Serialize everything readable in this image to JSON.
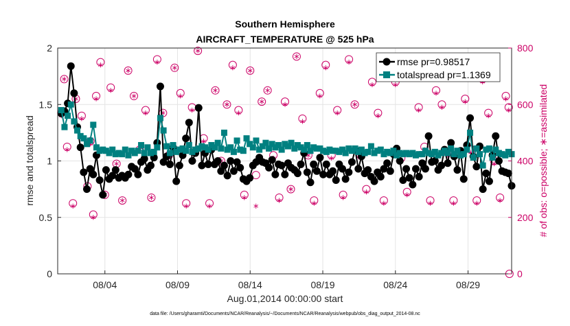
{
  "title": "Southern Hemisphere",
  "subtitle": "AIRCRAFT_TEMPERATURE @ 525 hPa",
  "xlabel": "Aug.01,2014 00:00:00 start",
  "ylabel_left": "rmse and totalspread",
  "ylabel_right": "# of obs: o=possible; ∗=assimilated",
  "footer": "data file: /Users/gharamti/Documents/NCAR/Reanalysis/~/Documents/NCAR/Reanalysis/webpub/obs_diag_output_2014-08.nc",
  "colors": {
    "rmse": "#000000",
    "spread": "#008080",
    "obs": "#cc0066",
    "grid": "#e4e4e4"
  },
  "chart_data": {
    "type": "line",
    "x_start_day": 1,
    "x_end_day": 32,
    "xlim": [
      0.75,
      32.0
    ],
    "xticks": [
      4,
      9,
      14,
      19,
      24,
      29
    ],
    "xtick_labels": [
      "08/04",
      "08/09",
      "08/14",
      "08/19",
      "08/24",
      "08/29"
    ],
    "ylim_left": [
      0,
      2
    ],
    "yticks_left": [
      0,
      0.5,
      1,
      1.5,
      2
    ],
    "ytick_labels_left": [
      "0",
      "0.5",
      "1",
      "1.5",
      "2"
    ],
    "ylim_right": [
      0,
      800
    ],
    "yticks_right": [
      0,
      200,
      400,
      600,
      800
    ],
    "ytick_labels_right": [
      "0",
      "200",
      "400",
      "600",
      "800"
    ],
    "grid": true,
    "legend_position": "top-right",
    "series": [
      {
        "name": "rmse pr=0.98517",
        "axis": "left",
        "marker": "circle",
        "values": [
          1.42,
          1.44,
          1.51,
          1.84,
          1.6,
          1.3,
          1.12,
          0.9,
          0.75,
          0.93,
          0.88,
          1.05,
          0.83,
          0.7,
          0.92,
          0.84,
          0.87,
          0.92,
          0.85,
          0.87,
          0.85,
          0.88,
          0.95,
          0.93,
          0.88,
          0.99,
          1.02,
          0.92,
          0.96,
          1.03,
          1.16,
          1.66,
          0.99,
          1.04,
          0.97,
          1.12,
          0.82,
          0.96,
          1.05,
          1.2,
          1.34,
          1.0,
          1.07,
          1.47,
          0.96,
          1.07,
          0.97,
          1.1,
          0.97,
          1.0,
          0.91,
          0.96,
          0.87,
          1.0,
          0.91,
          0.99,
          0.94,
          0.84,
          0.82,
          0.85,
          0.96,
          0.99,
          1.03,
          0.99,
          0.98,
          0.94,
          1.01,
          0.88,
          0.97,
          0.96,
          0.88,
          0.98,
          0.94,
          0.92,
          0.89,
          0.97,
          1.07,
          0.9,
          0.81,
          0.97,
          0.91,
          1.03,
          0.88,
          0.97,
          0.88,
          0.91,
          0.83,
          0.97,
          0.93,
          0.84,
          0.9,
          0.99,
          1.1,
          0.93,
          1.04,
          0.89,
          0.92,
          0.86,
          0.82,
          0.9,
          0.86,
          0.93,
          0.98,
          0.91,
          1.06,
          1.11,
          1.0,
          0.83,
          0.93,
          0.85,
          0.79,
          0.93,
          0.86,
          0.98,
          0.93,
          1.22,
          0.99,
          1.0,
          0.92,
          0.96,
          1.1,
          0.98,
          1.16,
          1.04,
          0.92,
          1.09,
          0.84,
          1.14,
          1.38,
          1.04,
          0.95,
          1.13,
          0.75,
          0.89,
          0.82,
          1.05,
          1.22,
          1.0,
          0.91,
          0.9,
          0.89,
          0.78
        ]
      },
      {
        "name": "totalspread pr=1.1369",
        "axis": "left",
        "marker": "square",
        "values": [
          1.45,
          1.3,
          1.4,
          1.5,
          1.35,
          1.27,
          1.22,
          1.2,
          1.15,
          1.18,
          1.32,
          1.12,
          1.09,
          1.1,
          1.09,
          1.07,
          1.1,
          1.06,
          1.07,
          1.06,
          1.1,
          1.05,
          1.09,
          1.07,
          1.09,
          1.14,
          1.07,
          1.12,
          1.07,
          1.08,
          1.12,
          1.38,
          1.27,
          1.13,
          1.07,
          1.14,
          1.08,
          1.1,
          1.11,
          1.09,
          1.14,
          1.08,
          1.1,
          1.11,
          1.13,
          1.12,
          1.1,
          1.14,
          1.12,
          1.16,
          1.11,
          1.25,
          1.1,
          1.12,
          1.08,
          1.18,
          1.1,
          1.09,
          1.2,
          1.15,
          1.12,
          1.18,
          1.1,
          1.13,
          1.16,
          1.11,
          1.15,
          1.12,
          1.14,
          1.1,
          1.15,
          1.13,
          1.16,
          1.11,
          1.14,
          1.12,
          1.1,
          1.14,
          1.09,
          1.12,
          1.11,
          1.11,
          1.09,
          1.08,
          1.1,
          1.09,
          1.09,
          1.08,
          1.1,
          1.07,
          1.11,
          1.09,
          1.11,
          1.08,
          1.1,
          1.07,
          1.08,
          1.13,
          1.07,
          1.09,
          1.1,
          1.06,
          1.08,
          1.07,
          1.09,
          1.05,
          1.07,
          1.06,
          1.07,
          1.06,
          1.07,
          1.05,
          1.06,
          1.06,
          1.09,
          1.07,
          1.06,
          1.08,
          1.05,
          1.07,
          1.09,
          1.07,
          1.11,
          1.06,
          1.09,
          1.05,
          1.06,
          1.1,
          1.25,
          1.03,
          1.11,
          1.06,
          0.96,
          1.1,
          1.11,
          1.03,
          1.1,
          1.07,
          1.06,
          1.05,
          1.08,
          1.06
        ]
      }
    ],
    "obs_possible": {
      "name": "possible",
      "axis": "right",
      "marker": "circle",
      "x": [
        1.0,
        1.2,
        1.4,
        1.8,
        2.0,
        2.4,
        2.8,
        3.0,
        3.2,
        3.4,
        3.7,
        4.0,
        4.4,
        4.8,
        5.2,
        5.6,
        6.0,
        6.4,
        6.8,
        7.2,
        7.6,
        8.0,
        8.4,
        8.8,
        9.2,
        9.6,
        10.0,
        10.4,
        10.8,
        11.2,
        11.6,
        12.0,
        12.4,
        12.8,
        13.2,
        13.6,
        14.0,
        14.4,
        14.8,
        15.2,
        15.6,
        16.0,
        16.4,
        16.8,
        17.2,
        17.6,
        18.0,
        18.4,
        18.8,
        19.2,
        19.6,
        20.0,
        20.4,
        20.8,
        21.2,
        21.6,
        22.0,
        22.4,
        22.8,
        23.2,
        23.6,
        24.0,
        24.4,
        24.8,
        25.2,
        25.6,
        26.0,
        26.4,
        26.8,
        27.2,
        27.6,
        28.0,
        28.4,
        28.8,
        29.2,
        29.6,
        30.0,
        30.4,
        30.8,
        31.2,
        31.6,
        31.8
      ],
      "values": [
        570,
        690,
        450,
        250,
        620,
        560,
        310,
        470,
        210,
        630,
        750,
        280,
        660,
        390,
        260,
        720,
        630,
        440,
        580,
        270,
        760,
        570,
        420,
        730,
        640,
        250,
        590,
        790,
        480,
        250,
        650,
        400,
        600,
        740,
        580,
        280,
        720,
        350,
        610,
        650,
        420,
        270,
        610,
        300,
        770,
        550,
        420,
        260,
        640,
        740,
        420,
        580,
        280,
        760,
        600,
        420,
        300,
        680,
        570,
        260,
        750,
        680,
        410,
        290,
        730,
        590,
        450,
        260,
        650,
        600,
        430,
        260,
        760,
        620,
        440,
        260,
        690,
        570,
        400,
        270,
        630,
        590
      ],
      "assimilated": [
        560,
        690,
        440,
        240,
        620,
        550,
        300,
        460,
        200,
        620,
        740,
        280,
        650,
        390,
        260,
        720,
        630,
        440,
        570,
        270,
        750,
        570,
        420,
        730,
        630,
        240,
        580,
        790,
        470,
        240,
        650,
        400,
        600,
        730,
        570,
        270,
        720,
        240,
        610,
        650,
        410,
        260,
        600,
        300,
        770,
        540,
        420,
        250,
        630,
        730,
        410,
        570,
        270,
        750,
        600,
        410,
        290,
        670,
        560,
        250,
        740,
        670,
        400,
        280,
        720,
        580,
        440,
        250,
        640,
        590,
        420,
        250,
        750,
        610,
        430,
        250,
        680,
        560,
        390,
        260,
        620,
        580
      ]
    }
  }
}
